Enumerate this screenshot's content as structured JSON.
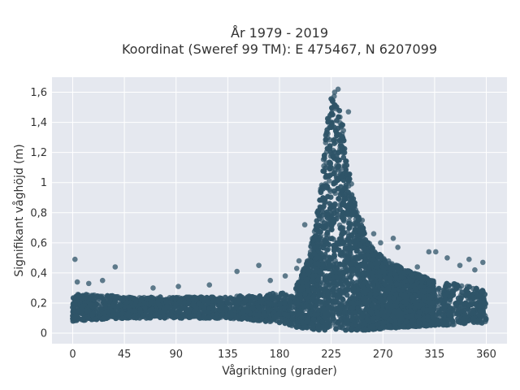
{
  "chart_data": {
    "type": "scatter",
    "title_line1": "År 1979 - 2019",
    "title_line2": "Koordinat (Sweref 99 TM): E 475467, N 6207099",
    "xlabel": "Vågriktning (grader)",
    "ylabel": "Signifikant våghöjd (m)",
    "xlim": [
      -18,
      378
    ],
    "ylim": [
      -0.07,
      1.7
    ],
    "xticks": [
      0,
      45,
      90,
      135,
      180,
      225,
      270,
      315,
      360
    ],
    "xtick_labels": [
      "0",
      "45",
      "90",
      "135",
      "180",
      "225",
      "270",
      "315",
      "360"
    ],
    "yticks": [
      0,
      0.2,
      0.4,
      0.6,
      0.8,
      1.0,
      1.2,
      1.4,
      1.6
    ],
    "ytick_labels": [
      "0",
      "0,2",
      "0,4",
      "0,6",
      "0,8",
      "1",
      "1,2",
      "1,4",
      "1,6"
    ],
    "grid": true,
    "marker_color": "#2f5468",
    "background_color": "#e5e8ef",
    "envelope": {
      "x": [
        0,
        20,
        45,
        90,
        135,
        180,
        195,
        205,
        215,
        222,
        226,
        230,
        235,
        240,
        245,
        250,
        258,
        270,
        290,
        315,
        340,
        360
      ],
      "low": [
        0.08,
        0.09,
        0.1,
        0.1,
        0.1,
        0.07,
        0.04,
        0.03,
        0.02,
        0.02,
        0.02,
        0.02,
        0.02,
        0.02,
        0.02,
        0.02,
        0.02,
        0.03,
        0.04,
        0.05,
        0.06,
        0.07
      ],
      "high": [
        0.26,
        0.26,
        0.24,
        0.24,
        0.24,
        0.27,
        0.32,
        0.5,
        0.9,
        1.45,
        1.6,
        1.55,
        1.4,
        1.1,
        0.9,
        0.75,
        0.6,
        0.5,
        0.42,
        0.35,
        0.32,
        0.28
      ]
    },
    "outliers": [
      {
        "x": 2,
        "y": 0.49
      },
      {
        "x": 4,
        "y": 0.34
      },
      {
        "x": 37,
        "y": 0.44
      },
      {
        "x": 14,
        "y": 0.33
      },
      {
        "x": 26,
        "y": 0.35
      },
      {
        "x": 70,
        "y": 0.3
      },
      {
        "x": 92,
        "y": 0.31
      },
      {
        "x": 119,
        "y": 0.32
      },
      {
        "x": 143,
        "y": 0.41
      },
      {
        "x": 162,
        "y": 0.45
      },
      {
        "x": 172,
        "y": 0.35
      },
      {
        "x": 185,
        "y": 0.38
      },
      {
        "x": 195,
        "y": 0.43
      },
      {
        "x": 197,
        "y": 0.48
      },
      {
        "x": 202,
        "y": 0.72
      },
      {
        "x": 213,
        "y": 0.58
      },
      {
        "x": 247,
        "y": 0.78
      },
      {
        "x": 252,
        "y": 0.75
      },
      {
        "x": 262,
        "y": 0.66
      },
      {
        "x": 268,
        "y": 0.6
      },
      {
        "x": 283,
        "y": 0.57
      },
      {
        "x": 310,
        "y": 0.54
      },
      {
        "x": 316,
        "y": 0.54
      },
      {
        "x": 326,
        "y": 0.5
      },
      {
        "x": 345,
        "y": 0.49
      },
      {
        "x": 357,
        "y": 0.47
      },
      {
        "x": 350,
        "y": 0.42
      },
      {
        "x": 337,
        "y": 0.45
      },
      {
        "x": 300,
        "y": 0.44
      },
      {
        "x": 279,
        "y": 0.63
      },
      {
        "x": 240,
        "y": 1.47
      },
      {
        "x": 231,
        "y": 1.62
      },
      {
        "x": 228,
        "y": 1.6
      }
    ]
  }
}
